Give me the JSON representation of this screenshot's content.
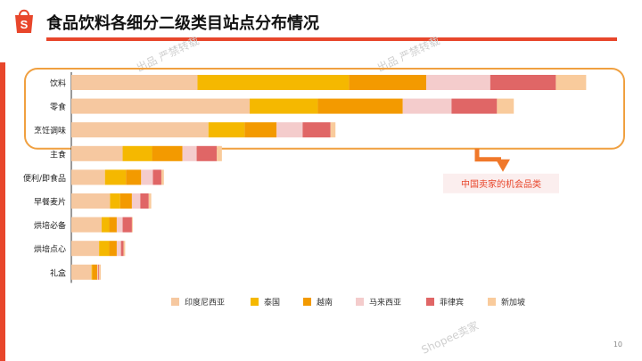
{
  "title": "食品饮料各细分二级类目站点分布情况",
  "callout": "中国卖家的机会品类",
  "watermarks": [
    "出品 严禁转载",
    "出品 严禁转载",
    "Shopee卖家"
  ],
  "page_number": "10",
  "colors": {
    "accent": "#e8462b",
    "callout_arrow": "#f0782a",
    "highlight_border": "#f0a040"
  },
  "chart_data": {
    "type": "bar",
    "orientation": "horizontal",
    "stacked": true,
    "categories": [
      "饮料",
      "零食",
      "烹饪调味",
      "主食",
      "便利/即食品",
      "早餐麦片",
      "烘培必备",
      "烘培点心",
      "礼盒"
    ],
    "series": [
      {
        "name": "印度尼西亚",
        "color": "#f6c8a0",
        "values": [
          150,
          212,
          163,
          61,
          40,
          46,
          36,
          33,
          24
        ]
      },
      {
        "name": "泰国",
        "color": "#f5b800",
        "values": [
          180,
          81,
          43,
          35,
          25,
          12,
          9,
          12,
          1
        ]
      },
      {
        "name": "越南",
        "color": "#f39a00",
        "values": [
          92,
          101,
          38,
          36,
          18,
          14,
          9,
          9,
          6
        ]
      },
      {
        "name": "马来西亚",
        "color": "#f4cccc",
        "values": [
          76,
          58,
          31,
          17,
          14,
          10,
          7,
          5,
          1
        ]
      },
      {
        "name": "菲律宾",
        "color": "#e06666",
        "values": [
          78,
          54,
          33,
          24,
          10,
          10,
          11,
          3,
          1
        ]
      },
      {
        "name": "新加坡",
        "color": "#f9cb9c",
        "values": [
          36,
          20,
          6,
          6,
          3,
          3,
          1,
          2,
          2
        ]
      }
    ],
    "legend_position": "bottom",
    "grid": false,
    "highlighted_categories": [
      "饮料",
      "零食",
      "烹饪调味"
    ]
  }
}
